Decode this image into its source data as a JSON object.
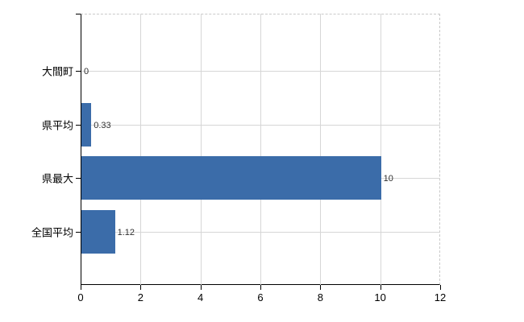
{
  "chart_data": {
    "type": "bar",
    "orientation": "horizontal",
    "categories": [
      "大間町",
      "県平均",
      "県最大",
      "全国平均"
    ],
    "values": [
      0,
      0.33,
      10,
      1.12
    ],
    "value_labels": [
      "0",
      "0.33",
      "10",
      "1.12"
    ],
    "title": "",
    "xlabel": "",
    "ylabel": "",
    "xlim": [
      0,
      12
    ],
    "x_ticks": [
      0,
      2,
      4,
      6,
      8,
      10,
      12
    ],
    "x_tick_labels": [
      "0",
      "2",
      "4",
      "6",
      "8",
      "10",
      "12"
    ],
    "grid": true,
    "legend_position": "none",
    "bar_color": "#3b6ca9",
    "grid_color": "#d6d6d6",
    "axis_color": "#000000",
    "background_color": "#ffffff"
  }
}
